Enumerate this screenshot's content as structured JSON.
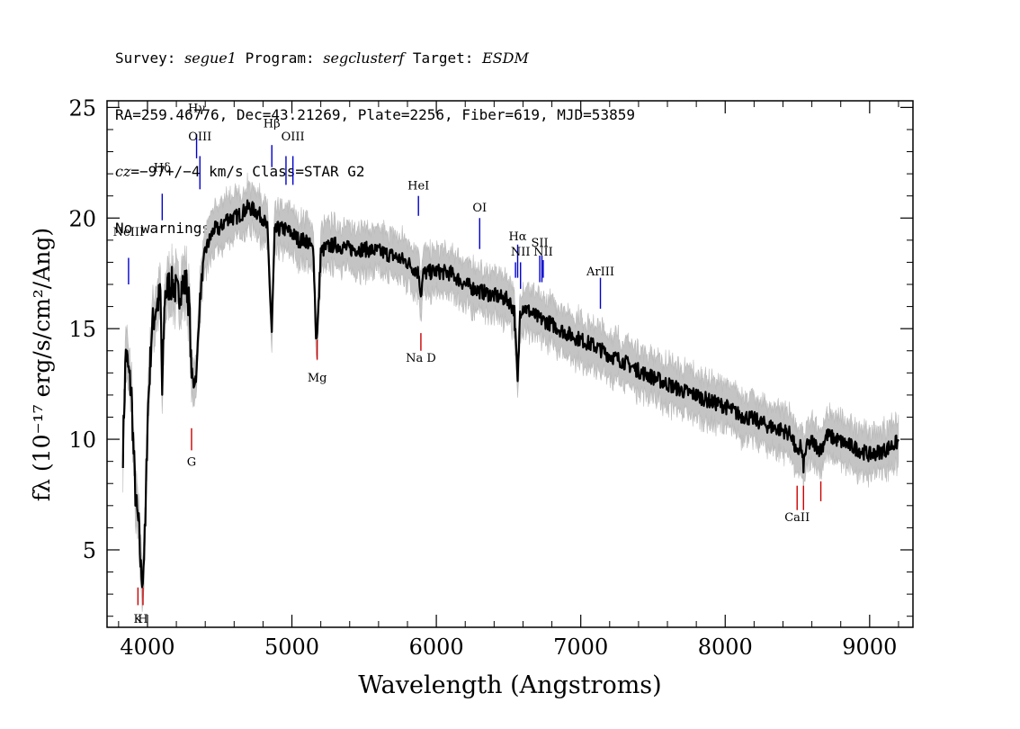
{
  "header": {
    "survey_label": "Survey:",
    "survey": "segue1",
    "program_label": "Program:",
    "program": "segclusterf",
    "target_label": "Target:",
    "target": "ESDM",
    "line2": "RA=259.46776, Dec=43.21269, Plate=2256, Fiber=619, MJD=53859",
    "cz_label": "cz",
    "cz_value": "=−97+/−4",
    "cz_rest": " km/s Class=STAR G2",
    "warnings": "No warnings."
  },
  "chart_data": {
    "type": "line",
    "xlabel": "Wavelength (Angstroms)",
    "ylabel": "fλ (10⁻¹⁷ erg/s/cm²/Ang)",
    "xlim": [
      3720,
      9300
    ],
    "ylim": [
      1.5,
      25.3
    ],
    "xticks": [
      4000,
      5000,
      6000,
      7000,
      8000,
      9000
    ],
    "yticks": [
      5,
      10,
      15,
      20,
      25
    ],
    "grid": false,
    "series": [
      {
        "color": "#000000",
        "x": [
          3830,
          3850,
          3870,
          3890,
          3900,
          3920,
          3940,
          3955,
          3968,
          3985,
          4000,
          4030,
          4060,
          4090,
          4102,
          4120,
          4150,
          4180,
          4210,
          4240,
          4270,
          4290,
          4305,
          4320,
          4340,
          4360,
          4380,
          4400,
          4430,
          4460,
          4500,
          4550,
          4600,
          4650,
          4700,
          4750,
          4800,
          4830,
          4861,
          4880,
          4900,
          4950,
          5000,
          5050,
          5100,
          5150,
          5167,
          5175,
          5185,
          5200,
          5250,
          5300,
          5400,
          5500,
          5600,
          5700,
          5800,
          5880,
          5893,
          5910,
          6000,
          6100,
          6200,
          6300,
          6400,
          6500,
          6540,
          6563,
          6580,
          6600,
          6700,
          6800,
          6900,
          7000,
          7100,
          7200,
          7300,
          7400,
          7500,
          7600,
          7700,
          7800,
          7900,
          8000,
          8100,
          8200,
          8300,
          8400,
          8460,
          8498,
          8520,
          8542,
          8560,
          8600,
          8662,
          8700,
          8800,
          8900,
          9000,
          9100,
          9200
        ],
        "values": [
          9.5,
          14,
          13,
          12,
          10,
          7,
          6,
          4,
          3.8,
          6,
          11,
          15,
          16,
          16.5,
          12,
          16.5,
          17,
          17,
          16.5,
          17,
          17,
          16,
          13,
          12.5,
          13,
          16,
          17.5,
          18.5,
          19,
          19.5,
          19.5,
          20,
          20,
          20.2,
          20.5,
          20.3,
          20,
          19.5,
          14.8,
          19.3,
          19.5,
          19.5,
          19.3,
          19,
          19,
          18.5,
          14.5,
          15,
          16,
          18.5,
          18.7,
          18.8,
          18.6,
          18.6,
          18.5,
          18.3,
          18,
          17.5,
          16.5,
          17.5,
          17.6,
          17.5,
          17,
          16.7,
          16.5,
          16.3,
          15.8,
          12.5,
          15.8,
          16,
          15.5,
          15.2,
          14.8,
          14.5,
          14.2,
          13.8,
          13.5,
          13.1,
          12.8,
          12.5,
          12.2,
          12,
          11.7,
          11.5,
          11.1,
          10.9,
          10.6,
          10.4,
          10.2,
          9.2,
          9.8,
          8.8,
          9.6,
          9.9,
          9.5,
          10.2,
          9.9,
          9.6,
          9.3,
          9.5,
          9.9
        ]
      }
    ],
    "line_ids": [
      {
        "label": "NeIII",
        "x": 3869,
        "y1": 18.2,
        "y2": 17.0,
        "color": "#0000cc",
        "label_y": 19.2
      },
      {
        "label": "Hδ",
        "x": 4102,
        "y1": 21.1,
        "y2": 19.9,
        "color": "#0000cc",
        "label_y": 22.1
      },
      {
        "label": "Hγ",
        "x": 4340,
        "y1": 23.8,
        "y2": 22.7,
        "color": "#0000cc",
        "label_y": 24.8
      },
      {
        "label": "OIII",
        "x": 4363,
        "y1": 22.8,
        "y2": 21.3,
        "color": "#0000cc",
        "label_y": 23.5
      },
      {
        "label": "Hβ",
        "x": 4861,
        "y1": 23.3,
        "y2": 22.3,
        "color": "#0000cc",
        "label_y": 24.1
      },
      {
        "label": "OIII",
        "x": 4959,
        "y1": 22.8,
        "y2": 21.5,
        "color": "#0000cc",
        "label_y": null
      },
      {
        "label": "OIII",
        "x": 5007,
        "y1": 22.8,
        "y2": 21.5,
        "color": "#0000cc",
        "label_y": 23.5
      },
      {
        "label": "HeI",
        "x": 5876,
        "y1": 21.0,
        "y2": 20.1,
        "color": "#0000cc",
        "label_y": 21.3
      },
      {
        "label": "OI",
        "x": 6300,
        "y1": 20.0,
        "y2": 18.6,
        "color": "#0000cc",
        "label_y": 20.3
      },
      {
        "label": "NII",
        "x": 6548,
        "y1": 18.0,
        "y2": 17.3,
        "color": "#0000cc",
        "label_y": null
      },
      {
        "label": "Hα",
        "x": 6563,
        "y1": 18.8,
        "y2": 17.3,
        "color": "#0000cc",
        "label_y": 19.0
      },
      {
        "label": "NII",
        "x": 6583,
        "y1": 18.0,
        "y2": 16.8,
        "color": "#0000cc",
        "label_y": 18.3
      },
      {
        "label": "SII",
        "x": 6716,
        "y1": 18.3,
        "y2": 17.1,
        "color": "#0000cc",
        "label_y": 18.7
      },
      {
        "label": "SII",
        "x": 6731,
        "y1": 18.3,
        "y2": 17.1,
        "color": "#0000cc",
        "label_y": null
      },
      {
        "label": "NII",
        "x": 6740,
        "y1": 18.1,
        "y2": 17.3,
        "color": "#0000cc",
        "label_y": 18.3
      },
      {
        "label": "ArIII",
        "x": 7136,
        "y1": 17.3,
        "y2": 15.9,
        "color": "#0000cc",
        "label_y": 17.4
      },
      {
        "label": "K",
        "x": 3934,
        "y1": 2.5,
        "y2": 3.3,
        "color": "#cc0000",
        "label_y": 1.7
      },
      {
        "label": "H",
        "x": 3969,
        "y1": 2.5,
        "y2": 3.3,
        "color": "#cc0000",
        "label_y": 1.7
      },
      {
        "label": "G",
        "x": 4305,
        "y1": 9.5,
        "y2": 10.5,
        "color": "#cc0000",
        "label_y": 8.8
      },
      {
        "label": "Mg",
        "x": 5175,
        "y1": 13.6,
        "y2": 14.5,
        "color": "#cc0000",
        "label_y": 12.6
      },
      {
        "label": "Na D",
        "x": 5893,
        "y1": 14.0,
        "y2": 14.8,
        "color": "#cc0000",
        "label_y": 13.5
      },
      {
        "label": "CaII",
        "x": 8498,
        "y1": 7.9,
        "y2": 6.8,
        "color": "#cc0000",
        "label_y": 6.3
      },
      {
        "label": "CaII",
        "x": 8542,
        "y1": 7.9,
        "y2": 6.8,
        "color": "#cc0000",
        "label_y": null
      },
      {
        "label": "CaII",
        "x": 8662,
        "y1": 8.1,
        "y2": 7.2,
        "color": "#cc0000",
        "label_y": null
      }
    ]
  }
}
